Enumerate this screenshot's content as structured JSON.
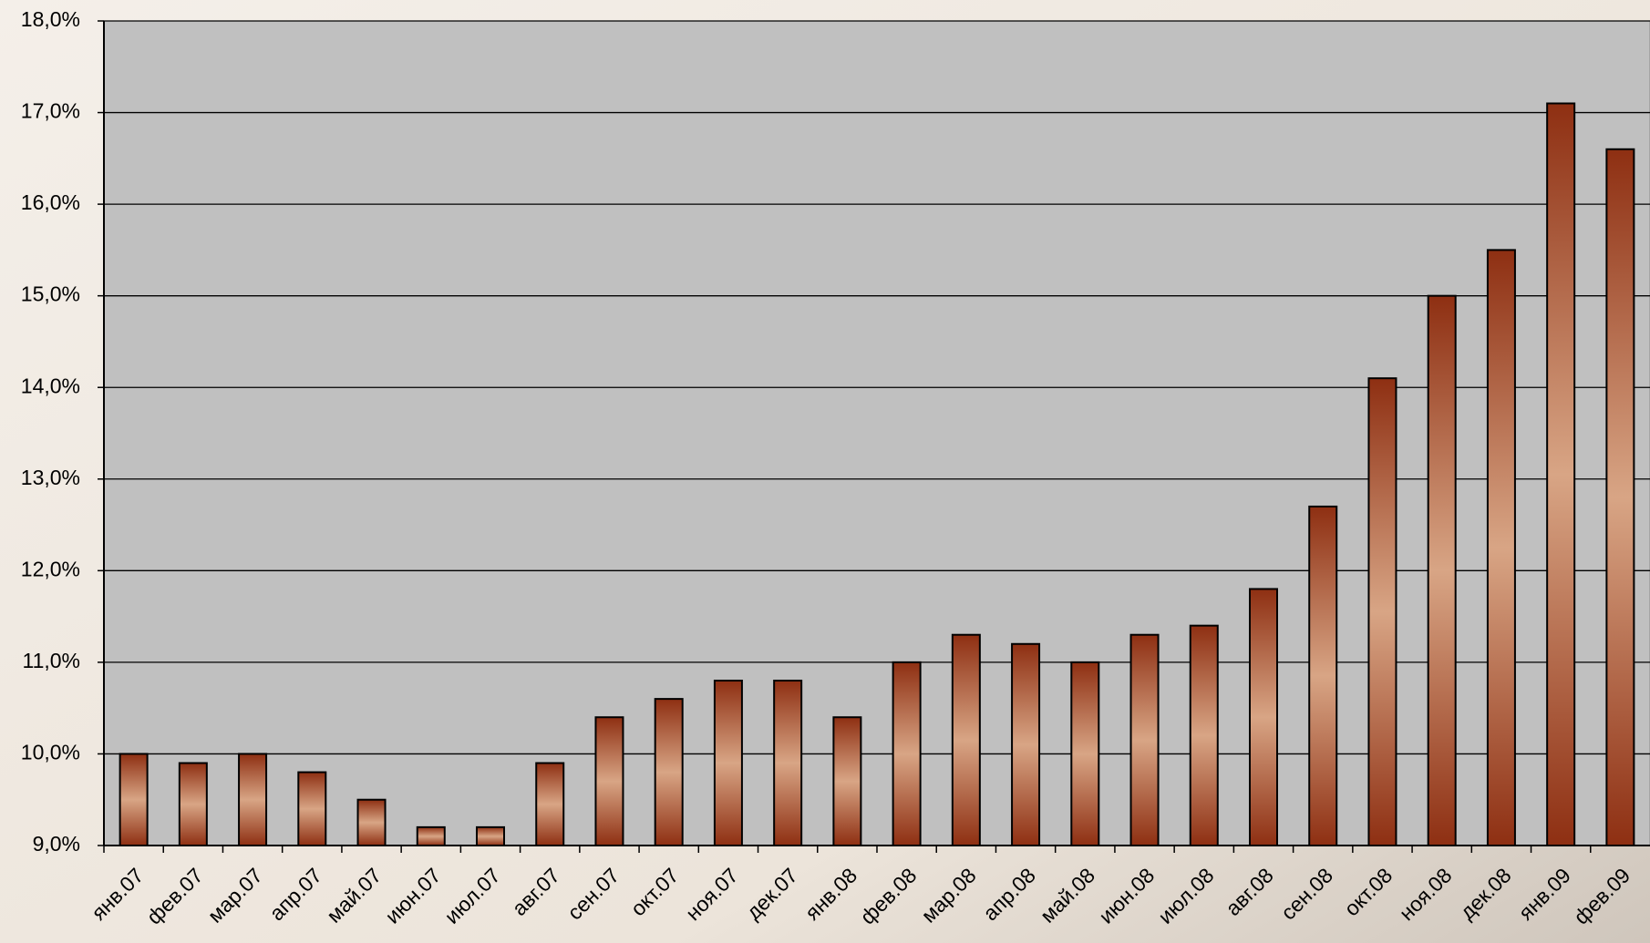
{
  "chart_data": {
    "type": "bar",
    "categories": [
      "янв.07",
      "фев.07",
      "мар.07",
      "апр.07",
      "май.07",
      "июн.07",
      "июл.07",
      "авг.07",
      "сен.07",
      "окт.07",
      "ноя.07",
      "дек.07",
      "янв.08",
      "фев.08",
      "мар.08",
      "апр.08",
      "май.08",
      "июн.08",
      "июл.08",
      "авг.08",
      "сен.08",
      "окт.08",
      "ноя.08",
      "дек.08",
      "янв.09",
      "фев.09"
    ],
    "values": [
      10.0,
      9.9,
      10.0,
      9.8,
      9.5,
      9.2,
      9.2,
      9.9,
      10.4,
      10.6,
      10.8,
      10.8,
      10.4,
      11.0,
      11.3,
      11.2,
      11.0,
      11.3,
      11.4,
      11.8,
      12.7,
      14.1,
      15.0,
      15.5,
      17.1,
      16.6
    ],
    "color": "#8e2f12",
    "ylim": [
      9,
      18
    ],
    "yticks": [
      {
        "value": 9,
        "label": "9,0%"
      },
      {
        "value": 10,
        "label": "10,0%"
      },
      {
        "value": 11,
        "label": "11,0%"
      },
      {
        "value": 12,
        "label": "12,0%"
      },
      {
        "value": 13,
        "label": "13,0%"
      },
      {
        "value": 14,
        "label": "14,0%"
      },
      {
        "value": 15,
        "label": "15,0%"
      },
      {
        "value": 16,
        "label": "16,0%"
      },
      {
        "value": 17,
        "label": "17,0%"
      },
      {
        "value": 18,
        "label": "18,0%"
      }
    ],
    "grid": true
  }
}
